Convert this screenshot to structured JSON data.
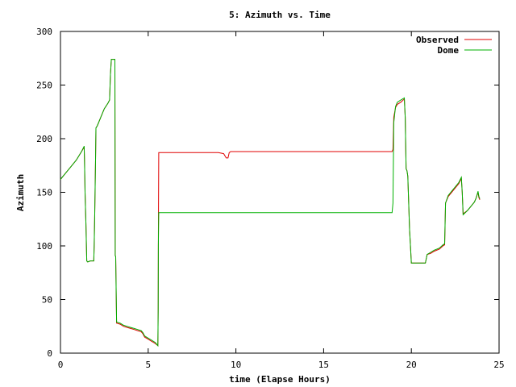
{
  "chart_data": {
    "type": "line",
    "title": "5: Azimuth vs. Time",
    "xlabel": "time (Elapse Hours)",
    "ylabel": "Azimuth",
    "xlim": [
      0,
      25
    ],
    "ylim": [
      0,
      300
    ],
    "x_ticks": [
      0,
      5,
      10,
      15,
      20,
      25
    ],
    "y_ticks": [
      0,
      50,
      100,
      150,
      200,
      250,
      300
    ],
    "grid": false,
    "legend_position": "top-right",
    "series": [
      {
        "name": "Observed",
        "color": "#e00000",
        "points": [
          [
            0.0,
            162
          ],
          [
            0.3,
            168
          ],
          [
            0.6,
            174
          ],
          [
            0.9,
            180
          ],
          [
            1.2,
            188
          ],
          [
            1.35,
            192
          ],
          [
            1.37,
            180
          ],
          [
            1.4,
            150
          ],
          [
            1.45,
            120
          ],
          [
            1.5,
            86
          ],
          [
            1.55,
            85
          ],
          [
            1.7,
            86
          ],
          [
            1.9,
            86
          ],
          [
            1.92,
            100
          ],
          [
            1.95,
            125
          ],
          [
            2.0,
            180
          ],
          [
            2.02,
            210
          ],
          [
            2.1,
            212
          ],
          [
            2.3,
            220
          ],
          [
            2.5,
            228
          ],
          [
            2.7,
            233
          ],
          [
            2.8,
            236
          ],
          [
            2.85,
            260
          ],
          [
            2.9,
            274
          ],
          [
            3.0,
            274
          ],
          [
            3.05,
            274
          ],
          [
            3.1,
            274
          ],
          [
            3.12,
            91
          ],
          [
            3.15,
            90
          ],
          [
            3.2,
            28
          ],
          [
            3.4,
            27
          ],
          [
            3.6,
            25
          ],
          [
            3.8,
            24
          ],
          [
            4.0,
            23
          ],
          [
            4.2,
            22
          ],
          [
            4.4,
            21
          ],
          [
            4.6,
            20
          ],
          [
            4.7,
            18
          ],
          [
            4.8,
            15
          ],
          [
            5.0,
            13
          ],
          [
            5.2,
            11
          ],
          [
            5.4,
            9
          ],
          [
            5.55,
            7
          ],
          [
            5.57,
            40
          ],
          [
            5.58,
            100
          ],
          [
            5.6,
            187
          ],
          [
            6.5,
            187
          ],
          [
            8.0,
            187
          ],
          [
            9.0,
            187
          ],
          [
            9.3,
            186
          ],
          [
            9.45,
            182
          ],
          [
            9.55,
            182
          ],
          [
            9.62,
            187
          ],
          [
            9.7,
            188
          ],
          [
            12.0,
            188
          ],
          [
            15.0,
            188
          ],
          [
            17.0,
            188
          ],
          [
            18.9,
            188
          ],
          [
            18.95,
            190
          ],
          [
            19.0,
            220
          ],
          [
            19.1,
            229
          ],
          [
            19.2,
            232
          ],
          [
            19.4,
            234
          ],
          [
            19.6,
            237
          ],
          [
            19.65,
            220
          ],
          [
            19.7,
            172
          ],
          [
            19.75,
            170
          ],
          [
            19.8,
            165
          ],
          [
            19.85,
            140
          ],
          [
            19.9,
            115
          ],
          [
            19.95,
            100
          ],
          [
            20.0,
            84
          ],
          [
            20.3,
            84
          ],
          [
            20.6,
            84
          ],
          [
            20.8,
            84
          ],
          [
            20.9,
            92
          ],
          [
            21.1,
            93
          ],
          [
            21.3,
            95
          ],
          [
            21.6,
            97
          ],
          [
            21.8,
            100
          ],
          [
            21.9,
            101
          ],
          [
            21.95,
            140
          ],
          [
            22.1,
            146
          ],
          [
            22.3,
            150
          ],
          [
            22.5,
            154
          ],
          [
            22.7,
            158
          ],
          [
            22.85,
            163
          ],
          [
            22.9,
            150
          ],
          [
            22.95,
            130
          ],
          [
            23.2,
            133
          ],
          [
            23.4,
            137
          ],
          [
            23.6,
            141
          ],
          [
            23.7,
            145
          ],
          [
            23.8,
            150
          ],
          [
            23.85,
            145
          ],
          [
            23.9,
            143
          ]
        ]
      },
      {
        "name": "Dome",
        "color": "#00b000",
        "points": [
          [
            0.0,
            162
          ],
          [
            0.3,
            168
          ],
          [
            0.6,
            174
          ],
          [
            0.9,
            180
          ],
          [
            1.2,
            188
          ],
          [
            1.35,
            193
          ],
          [
            1.37,
            180
          ],
          [
            1.4,
            150
          ],
          [
            1.45,
            120
          ],
          [
            1.5,
            86
          ],
          [
            1.55,
            85
          ],
          [
            1.7,
            86
          ],
          [
            1.9,
            86
          ],
          [
            1.92,
            100
          ],
          [
            1.95,
            125
          ],
          [
            2.0,
            180
          ],
          [
            2.02,
            210
          ],
          [
            2.1,
            212
          ],
          [
            2.3,
            220
          ],
          [
            2.5,
            228
          ],
          [
            2.7,
            233
          ],
          [
            2.8,
            236
          ],
          [
            2.85,
            260
          ],
          [
            2.9,
            274
          ],
          [
            3.0,
            274
          ],
          [
            3.05,
            274
          ],
          [
            3.1,
            274
          ],
          [
            3.12,
            91
          ],
          [
            3.15,
            90
          ],
          [
            3.2,
            29
          ],
          [
            3.4,
            28
          ],
          [
            3.6,
            26
          ],
          [
            3.8,
            25
          ],
          [
            4.0,
            24
          ],
          [
            4.2,
            23
          ],
          [
            4.4,
            22
          ],
          [
            4.6,
            21
          ],
          [
            4.7,
            19
          ],
          [
            4.8,
            16
          ],
          [
            5.0,
            14
          ],
          [
            5.2,
            12
          ],
          [
            5.4,
            10
          ],
          [
            5.55,
            7
          ],
          [
            5.57,
            40
          ],
          [
            5.58,
            100
          ],
          [
            5.6,
            131
          ],
          [
            8.0,
            131
          ],
          [
            12.0,
            131
          ],
          [
            15.0,
            131
          ],
          [
            18.9,
            131
          ],
          [
            18.95,
            140
          ],
          [
            19.0,
            215
          ],
          [
            19.1,
            230
          ],
          [
            19.2,
            234
          ],
          [
            19.4,
            236
          ],
          [
            19.6,
            238
          ],
          [
            19.65,
            220
          ],
          [
            19.7,
            172
          ],
          [
            19.75,
            170
          ],
          [
            19.8,
            165
          ],
          [
            19.85,
            140
          ],
          [
            19.9,
            115
          ],
          [
            19.95,
            100
          ],
          [
            20.0,
            84
          ],
          [
            20.3,
            84
          ],
          [
            20.6,
            84
          ],
          [
            20.8,
            84
          ],
          [
            20.9,
            92
          ],
          [
            21.1,
            94
          ],
          [
            21.3,
            96
          ],
          [
            21.6,
            98
          ],
          [
            21.8,
            101
          ],
          [
            21.9,
            102
          ],
          [
            21.95,
            140
          ],
          [
            22.1,
            147
          ],
          [
            22.3,
            151
          ],
          [
            22.5,
            155
          ],
          [
            22.7,
            159
          ],
          [
            22.85,
            164
          ],
          [
            22.9,
            150
          ],
          [
            22.95,
            129
          ],
          [
            23.2,
            133
          ],
          [
            23.4,
            137
          ],
          [
            23.6,
            141
          ],
          [
            23.7,
            145
          ],
          [
            23.8,
            151
          ],
          [
            23.85,
            146
          ],
          [
            23.9,
            144
          ]
        ]
      }
    ]
  }
}
